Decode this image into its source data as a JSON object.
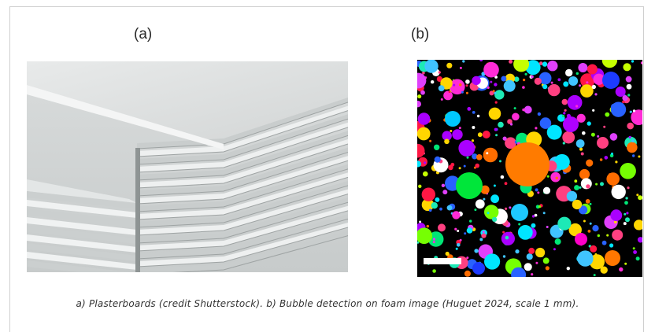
{
  "figure": {
    "panel_a_label": "(a)",
    "panel_b_label": "(b)",
    "caption": "a) Plasterboards (credit Shutterstock). b) Bubble detection on foam image (Huguet 2024, scale 1 mm)."
  },
  "colors": {
    "frame_border": "#cfcfcf",
    "caption_text": "#333333",
    "foam_background": "#000000"
  }
}
